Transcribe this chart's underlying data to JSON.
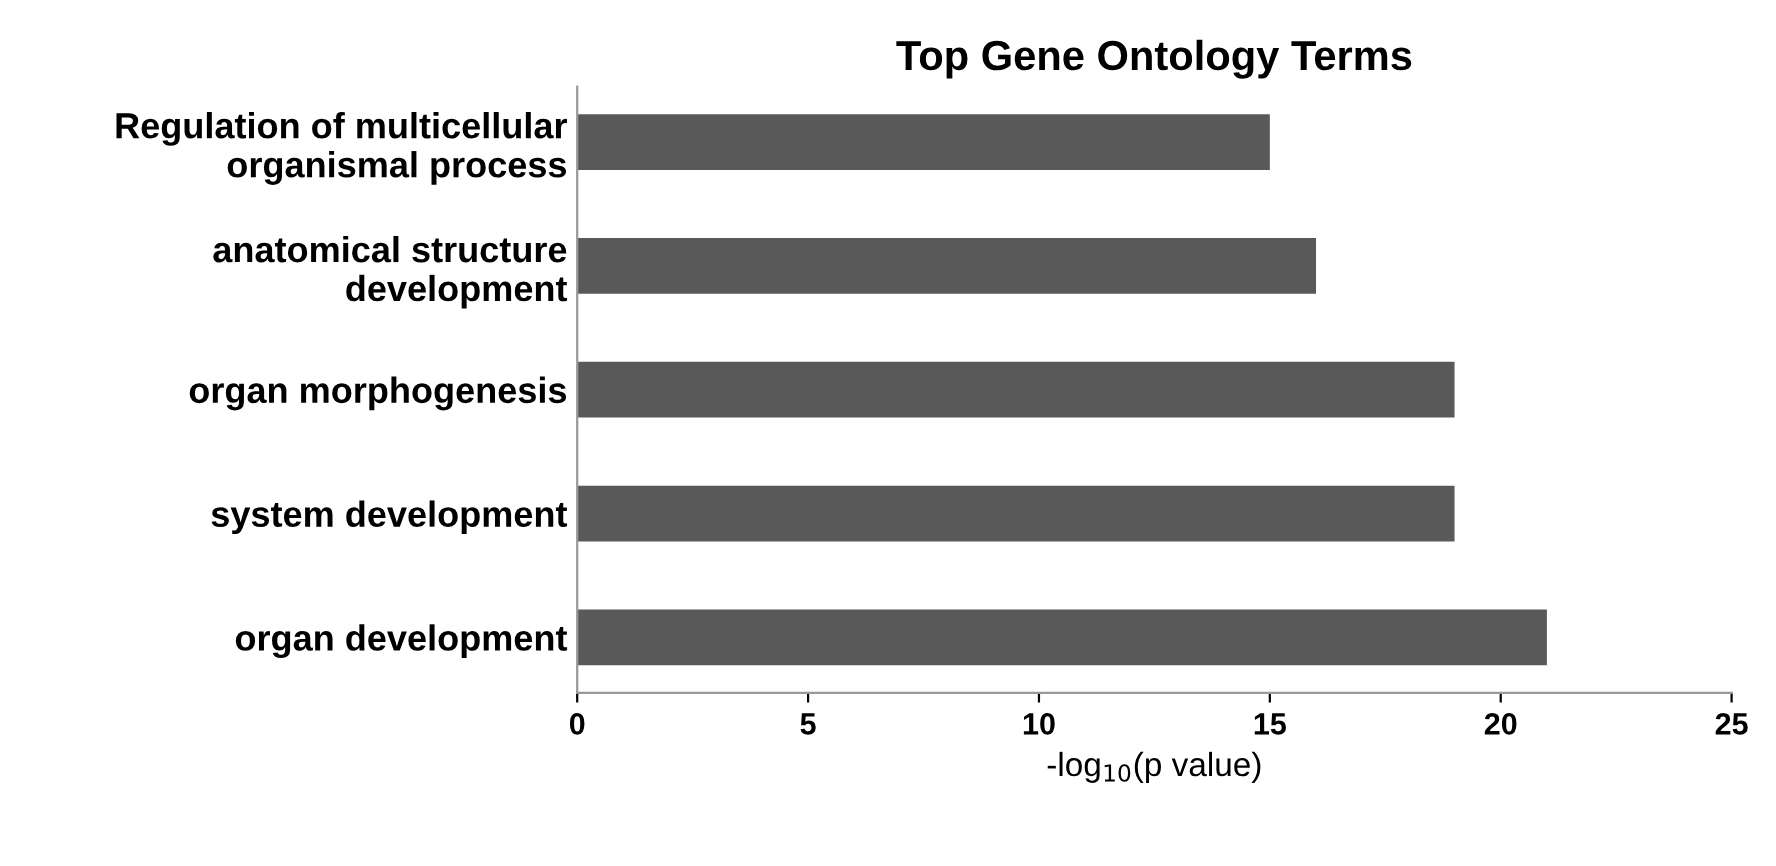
{
  "chart_data": {
    "type": "bar",
    "orientation": "horizontal",
    "title": "Top Gene Ontology Terms",
    "categories": [
      "Regulation of multicellular\norganismal process",
      "anatomical structure\ndevelopment",
      "organ morphogenesis",
      "system development",
      "organ development"
    ],
    "values": [
      15,
      16,
      19,
      19,
      21
    ],
    "color": "#595959",
    "xlabel": "-log$_{10}$(p value)",
    "xlim": [
      0,
      25
    ],
    "xticks": [
      0,
      5,
      10,
      15,
      20,
      25
    ],
    "grid": false,
    "legend": false
  }
}
